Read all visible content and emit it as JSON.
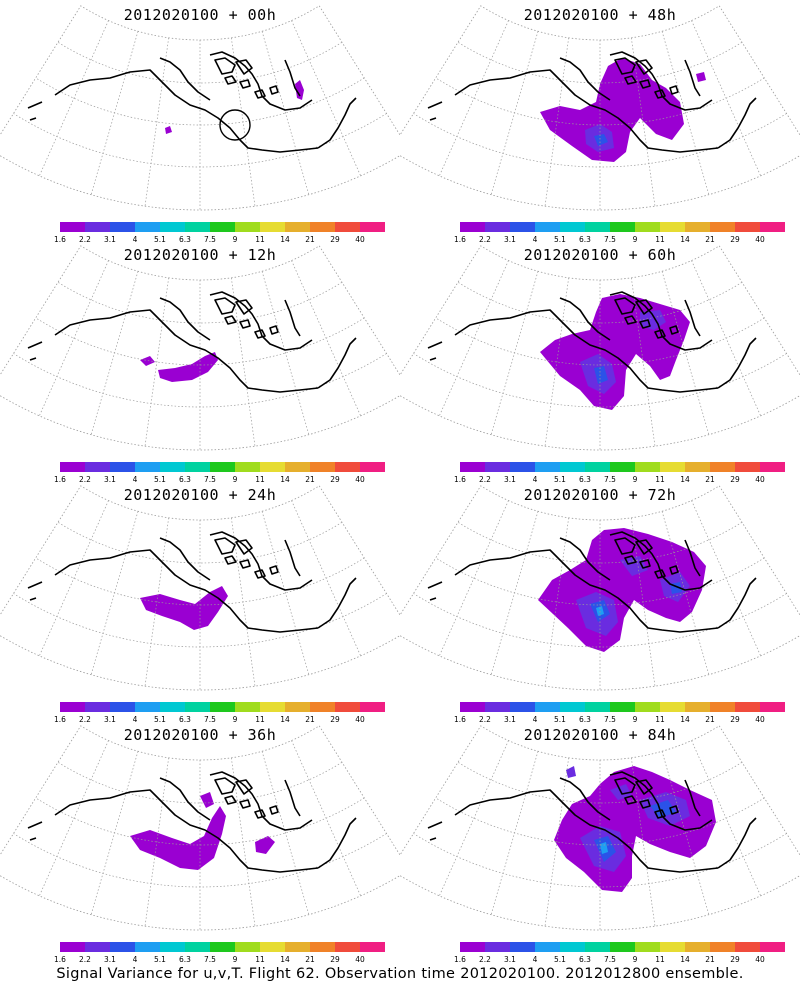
{
  "panels": [
    {
      "title": "2012020100 + 00h",
      "lead": "00h",
      "variance_regions": [
        {
          "level": "1.6",
          "color": "#9a00d2",
          "area": "small isolated spots near the Aleutians and over eastern Canada (Labrador coast)"
        }
      ]
    },
    {
      "title": "2012020100 + 12h",
      "lead": "12h",
      "variance_regions": [
        {
          "level": "1.6",
          "color": "#9a00d2",
          "area": "narrow band south of Alaska over the North Pacific"
        }
      ]
    },
    {
      "title": "2012020100 + 24h",
      "lead": "24h",
      "variance_regions": [
        {
          "level": "1.6",
          "color": "#9a00d2",
          "area": "band from the central North Pacific to the Gulf of Alaska"
        }
      ]
    },
    {
      "title": "2012020100 + 36h",
      "lead": "36h",
      "variance_regions": [
        {
          "level": "1.6",
          "color": "#9a00d2",
          "area": "North Pacific to Alaska, with a separate patch over central Canada"
        }
      ]
    },
    {
      "title": "2012020100 + 48h",
      "lead": "48h",
      "variance_regions": [
        {
          "level": "1.6",
          "color": "#9a00d2",
          "area": "broad area over the North Pacific, Alaska and western Canada"
        },
        {
          "level": "2.2",
          "color": "#6a2ce0",
          "area": "core over the Gulf of Alaska"
        },
        {
          "level": "3.1",
          "color": "#2b52e8",
          "area": "small core in the Gulf of Alaska"
        }
      ]
    },
    {
      "title": "2012020100 + 60h",
      "lead": "60h",
      "variance_regions": [
        {
          "level": "1.6",
          "color": "#9a00d2",
          "area": "North Pacific through Alaska and northern Canada"
        },
        {
          "level": "2.2",
          "color": "#6a2ce0",
          "area": "Gulf of Alaska and northern Canada"
        },
        {
          "level": "3.1",
          "color": "#2b52e8",
          "area": "core south of Alaska"
        }
      ]
    },
    {
      "title": "2012020100 + 72h",
      "lead": "72h",
      "variance_regions": [
        {
          "level": "1.6",
          "color": "#9a00d2",
          "area": "expanding area over the North Pacific, Alaska and western Canada"
        },
        {
          "level": "2.2",
          "color": "#6a2ce0",
          "area": "Gulf of Alaska and western Canada"
        },
        {
          "level": "3.1",
          "color": "#2b52e8",
          "area": "cores over the Gulf of Alaska and western Canada"
        },
        {
          "level": "4",
          "color": "#1e9ef2",
          "area": "small core in the Gulf of Alaska"
        }
      ]
    },
    {
      "title": "2012020100 + 84h",
      "lead": "84h",
      "variance_regions": [
        {
          "level": "1.6",
          "color": "#9a00d2",
          "area": "large area over the North Pacific, Alaska and Canada"
        },
        {
          "level": "2.2",
          "color": "#6a2ce0",
          "area": "Gulf of Alaska, northern Canada and Hudson Bay region"
        },
        {
          "level": "3.1",
          "color": "#2b52e8",
          "area": "cores over the Gulf of Alaska and central Canada"
        },
        {
          "level": "4",
          "color": "#1e9ef2",
          "area": "core in the Gulf of Alaska"
        }
      ]
    }
  ],
  "colorbar": {
    "colors": [
      "#9a00d2",
      "#6a2ce0",
      "#2b52e8",
      "#1e9ef2",
      "#00c8d2",
      "#00d2a0",
      "#1ec81e",
      "#a0dc1e",
      "#e6dc32",
      "#e6af2d",
      "#f08228",
      "#f04b3c",
      "#f01e82"
    ],
    "labels": [
      "1.6",
      "2.2",
      "3.1",
      "4",
      "5.1",
      "6.3",
      "7.5",
      "9",
      "11",
      "14",
      "21",
      "29",
      "40"
    ]
  },
  "footer": {
    "caption": "Signal Variance for u,v,T. Flight 62. Observation time 2012020100. 2012012800 ensemble."
  }
}
